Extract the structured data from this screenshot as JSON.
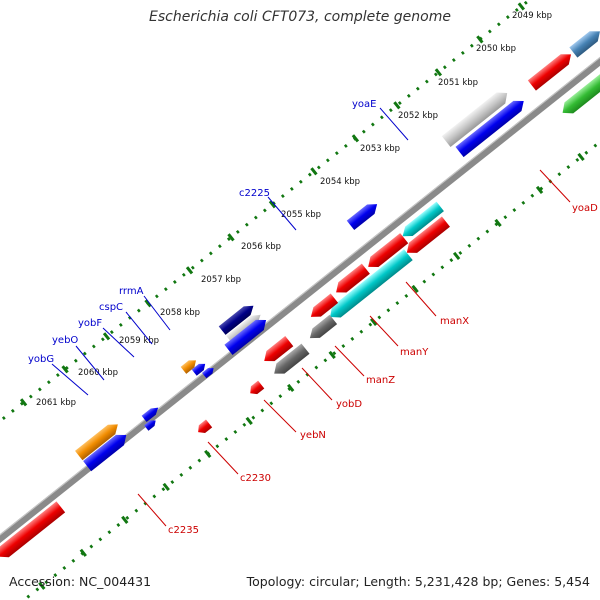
{
  "title": "Escherichia coli CFT073, complete genome",
  "accession_text": "Accession: NC_004431",
  "topology_text": "Topology: circular; Length: 5,231,428 bp; Genes: 5,454",
  "ruler_labels": [
    "2049 kbp",
    "2050 kbp",
    "2051 kbp",
    "2052 kbp",
    "2053 kbp",
    "2054 kbp",
    "2055 kbp",
    "2056 kbp",
    "2057 kbp",
    "2058 kbp",
    "2059 kbp",
    "2060 kbp",
    "2061 kbp"
  ],
  "forward_gene_labels": [
    "yoaE",
    "c2225",
    "rrmA",
    "cspC",
    "yobF",
    "yebO",
    "yobG"
  ],
  "reverse_gene_labels": [
    "yoaD",
    "manX",
    "manY",
    "manZ",
    "yobD",
    "yebN",
    "c2230",
    "c2235"
  ],
  "colors": {
    "forward_label": "#0000cc",
    "reverse_label": "#cc0000",
    "red": "#ee0000",
    "blue": "#0000ee",
    "navy": "#000088",
    "gray": "#666666",
    "light_gray": "#c8c8c8",
    "orange": "#f08c00",
    "green": "#33bb33",
    "steel_blue": "#4682b4",
    "cyan": "#00c8c8",
    "backbone": "#888888",
    "dots": "#117711"
  }
}
